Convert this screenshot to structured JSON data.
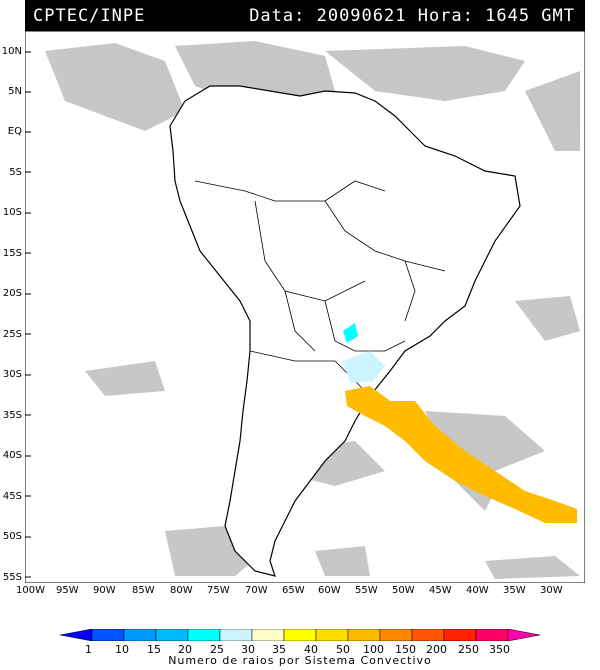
{
  "header": {
    "source": "CPTEC/INPE",
    "datetime": "Data: 20090621 Hora: 1645 GMT"
  },
  "axes": {
    "lat_labels": [
      "10N",
      "5N",
      "EQ",
      "5S",
      "10S",
      "15S",
      "20S",
      "25S",
      "30S",
      "35S",
      "40S",
      "45S",
      "50S",
      "55S"
    ],
    "lon_labels": [
      "100W",
      "95W",
      "90W",
      "85W",
      "80W",
      "75W",
      "70W",
      "65W",
      "60W",
      "55W",
      "50W",
      "45W",
      "40W",
      "35W",
      "30W"
    ]
  },
  "legend": {
    "title": "Numero de raios por Sistema Convectivo",
    "values": [
      "1",
      "10",
      "15",
      "20",
      "25",
      "30",
      "35",
      "40",
      "50",
      "100",
      "150",
      "200",
      "250",
      "350"
    ],
    "colors": [
      "#0000ff",
      "#0055ff",
      "#0099ff",
      "#00bbff",
      "#00ffff",
      "#ccf5ff",
      "#fffcc8",
      "#ffff00",
      "#ffdd00",
      "#ffbb00",
      "#ff8800",
      "#ff5500",
      "#ff2200",
      "#ff0066",
      "#ff00aa"
    ]
  },
  "colors": {
    "cloud": "#bdbdbd",
    "orange_system": "#ffbb00",
    "light_blue_system": "#ccf5ff",
    "cyan_system": "#00ffff"
  }
}
